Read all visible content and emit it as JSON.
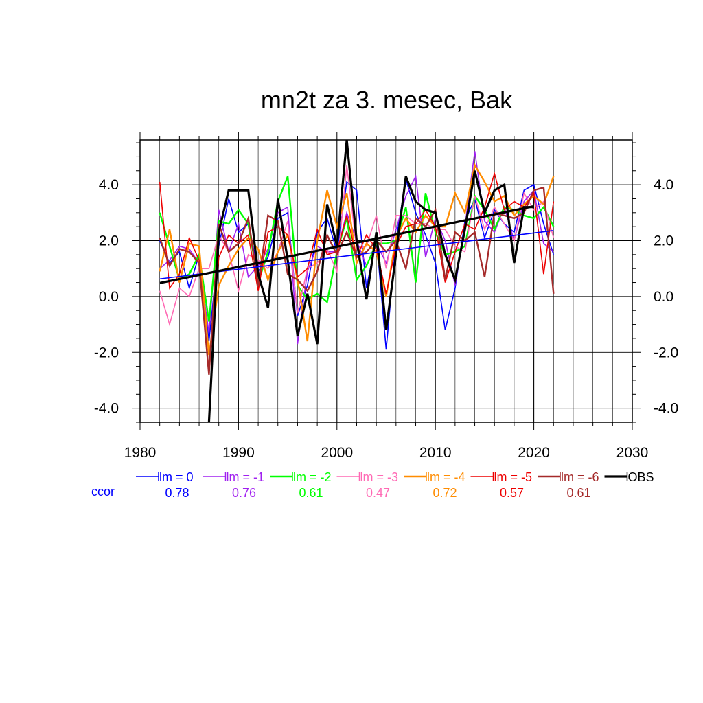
{
  "chart_data": {
    "type": "line",
    "title": "mn2t za 3. mesec, Bak",
    "xlabel": "",
    "ylabel": "",
    "xlim": [
      1980,
      2030
    ],
    "ylim": [
      -4.5,
      5.6
    ],
    "xticks": [
      1980,
      1990,
      2000,
      2010,
      2020,
      2030
    ],
    "xtick_labels": [
      "1980",
      "1990",
      "2000",
      "2010",
      "2020",
      "2030"
    ],
    "yticks": [
      -4,
      -2,
      0,
      2,
      4
    ],
    "ytick_labels": [
      "-4.0",
      "-2.0",
      "0.0",
      "2.0",
      "4.0"
    ],
    "grid": true,
    "legend_position": "bottom",
    "ccor_label": "ccor",
    "x": [
      1982,
      1983,
      1984,
      1985,
      1986,
      1987,
      1988,
      1989,
      1990,
      1991,
      1992,
      1993,
      1994,
      1995,
      1996,
      1997,
      1998,
      1999,
      2000,
      2001,
      2002,
      2003,
      2004,
      2005,
      2006,
      2007,
      2008,
      2009,
      2010,
      2011,
      2012,
      2013,
      2014,
      2015,
      2016,
      2017,
      2018,
      2019,
      2020,
      2021,
      2022
    ],
    "series": [
      {
        "name": "lm = 0",
        "ccor": "0.78",
        "color": "#0000ff",
        "width": 1.6,
        "values": [
          2.0,
          1.2,
          1.6,
          0.3,
          1.5,
          -1.6,
          1.8,
          3.5,
          2.3,
          2.6,
          0.9,
          1.4,
          2.8,
          3.0,
          -0.7,
          0.4,
          2.3,
          2.8,
          1.6,
          4.1,
          3.8,
          0.3,
          2.1,
          -1.9,
          2.0,
          4.2,
          3.0,
          2.2,
          1.2,
          -1.2,
          0.3,
          2.7,
          3.5,
          2.1,
          3.1,
          2.6,
          2.3,
          3.8,
          4.0,
          2.6,
          1.5
        ]
      },
      {
        "name": "lm = -1",
        "ccor": "0.76",
        "color": "#a020f0",
        "width": 1.6,
        "values": [
          1.0,
          1.3,
          1.8,
          1.7,
          1.2,
          -1.3,
          3.1,
          1.6,
          2.6,
          0.7,
          1.1,
          1.7,
          3.0,
          3.2,
          -1.7,
          0.9,
          1.8,
          1.6,
          1.6,
          3.0,
          2.0,
          1.1,
          1.9,
          1.2,
          2.4,
          3.6,
          4.3,
          1.4,
          2.8,
          2.0,
          0.4,
          2.5,
          5.2,
          2.7,
          2.3,
          3.2,
          2.0,
          3.4,
          3.8,
          1.9,
          1.6
        ]
      },
      {
        "name": "lm = -2",
        "ccor": "0.61",
        "color": "#00ff00",
        "width": 2.4,
        "values": [
          3.0,
          1.8,
          0.6,
          0.8,
          1.5,
          -0.9,
          2.7,
          2.6,
          3.1,
          2.6,
          0.5,
          1.6,
          3.4,
          4.3,
          0.4,
          -0.1,
          0.1,
          -0.2,
          1.6,
          2.8,
          0.6,
          1.1,
          1.9,
          1.9,
          2.0,
          3.2,
          0.5,
          3.7,
          2.3,
          1.5,
          1.6,
          1.8,
          3.6,
          3.1,
          2.4,
          3.2,
          3.1,
          2.9,
          2.8,
          3.2,
          2.5
        ]
      },
      {
        "name": "lm = -3",
        "ccor": "0.47",
        "color": "#ff69b4",
        "width": 1.6,
        "values": [
          0.2,
          -1.0,
          0.3,
          0.0,
          1.0,
          1.0,
          2.2,
          1.6,
          0.2,
          1.5,
          1.3,
          1.0,
          1.6,
          2.7,
          -0.6,
          1.0,
          1.2,
          1.7,
          0.9,
          4.7,
          1.7,
          1.8,
          2.9,
          1.0,
          2.9,
          2.9,
          2.6,
          2.6,
          2.4,
          2.4,
          1.8,
          1.6,
          3.6,
          2.4,
          3.2,
          2.6,
          2.0,
          3.7,
          3.1,
          3.4,
          2.1
        ]
      },
      {
        "name": "lm = -4",
        "ccor": "0.72",
        "color": "#ff8c00",
        "width": 2.4,
        "values": [
          0.9,
          2.4,
          0.5,
          1.9,
          1.8,
          -2.1,
          0.4,
          1.1,
          1.7,
          2.1,
          1.7,
          0.6,
          1.6,
          2.2,
          0.6,
          -1.6,
          2.0,
          3.8,
          2.5,
          3.7,
          1.2,
          1.9,
          1.6,
          0.0,
          2.1,
          2.8,
          2.3,
          2.9,
          2.5,
          2.5,
          3.7,
          3.0,
          4.7,
          4.1,
          3.4,
          3.6,
          2.9,
          3.3,
          3.6,
          3.3,
          4.3
        ]
      },
      {
        "name": "lm = -5",
        "ccor": "0.57",
        "color": "#ee0000",
        "width": 1.6,
        "values": [
          4.1,
          0.3,
          0.8,
          2.1,
          1.3,
          -2.7,
          1.4,
          2.2,
          1.9,
          2.2,
          0.2,
          2.3,
          2.5,
          2.2,
          0.7,
          1.0,
          2.4,
          1.5,
          1.6,
          2.9,
          1.4,
          2.2,
          1.7,
          0.1,
          1.8,
          2.5,
          2.6,
          3.1,
          2.5,
          0.5,
          1.6,
          2.6,
          2.4,
          3.2,
          4.4,
          3.1,
          3.4,
          3.2,
          3.7,
          0.8,
          3.4
        ]
      },
      {
        "name": "lm = -6",
        "ccor": "0.61",
        "color": "#a52a2a",
        "width": 2.4,
        "values": [
          2.1,
          1.1,
          1.7,
          1.6,
          1.2,
          -2.8,
          2.6,
          1.6,
          1.9,
          2.8,
          0.4,
          2.9,
          2.7,
          0.8,
          0.6,
          0.2,
          0.9,
          2.2,
          1.5,
          2.3,
          1.4,
          1.6,
          2.0,
          1.6,
          2.0,
          1.0,
          2.8,
          2.5,
          3.1,
          0.6,
          2.3,
          2.0,
          2.3,
          0.7,
          3.0,
          2.9,
          2.8,
          3.0,
          3.8,
          3.9,
          0.1
        ]
      },
      {
        "name": "OBS",
        "ccor": "",
        "color": "#000000",
        "width": 3.2,
        "values": [
          null,
          null,
          null,
          null,
          null,
          -4.5,
          2.3,
          3.8,
          3.8,
          3.8,
          0.8,
          -0.4,
          3.5,
          1.3,
          -1.4,
          0.1,
          -1.7,
          3.3,
          1.8,
          5.6,
          2.0,
          -0.1,
          2.3,
          -1.2,
          1.5,
          4.3,
          3.4,
          3.1,
          3.0,
          1.5,
          0.6,
          2.4,
          4.5,
          3.0,
          3.8,
          4.0,
          1.2,
          3.2,
          3.2,
          null,
          null
        ]
      }
    ],
    "trends": [
      {
        "name": "lm = 0 trend",
        "color": "#0000ff",
        "width": 1.6,
        "x": [
          1982,
          2022
        ],
        "y": [
          0.63,
          2.36
        ]
      },
      {
        "name": "OBS trend",
        "color": "#000000",
        "width": 3.2,
        "x": [
          1982,
          2020
        ],
        "y": [
          0.48,
          3.23
        ]
      }
    ]
  }
}
